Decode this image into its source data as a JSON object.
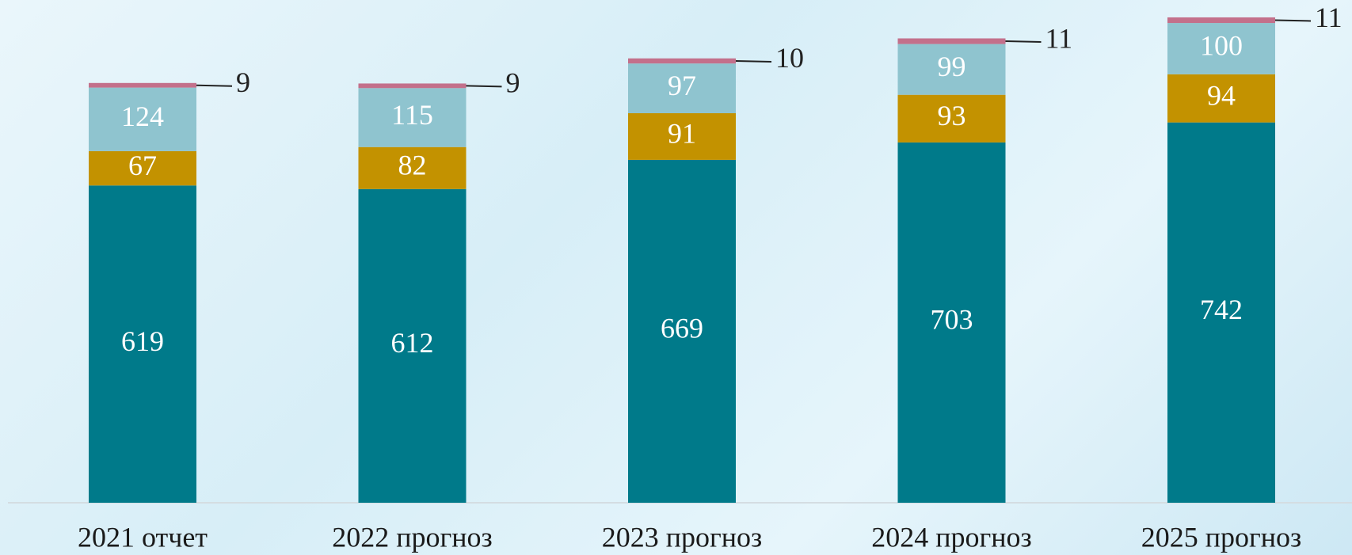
{
  "chart_data": {
    "type": "stacked_bar",
    "categories": [
      "2021 отчет",
      "2022 прогноз",
      "2023 прогноз",
      "2024 прогноз",
      "2025 прогноз"
    ],
    "series": [
      {
        "color": "#007a8a",
        "values": [
          619,
          612,
          669,
          703,
          742
        ]
      },
      {
        "color": "#c39200",
        "values": [
          67,
          82,
          91,
          93,
          94
        ]
      },
      {
        "color": "#8fc4cf",
        "values": [
          124,
          115,
          97,
          99,
          100
        ]
      },
      {
        "color": "#c3708b",
        "values": [
          9,
          9,
          10,
          11,
          11
        ]
      }
    ],
    "ylim": [
      0,
      950
    ]
  }
}
